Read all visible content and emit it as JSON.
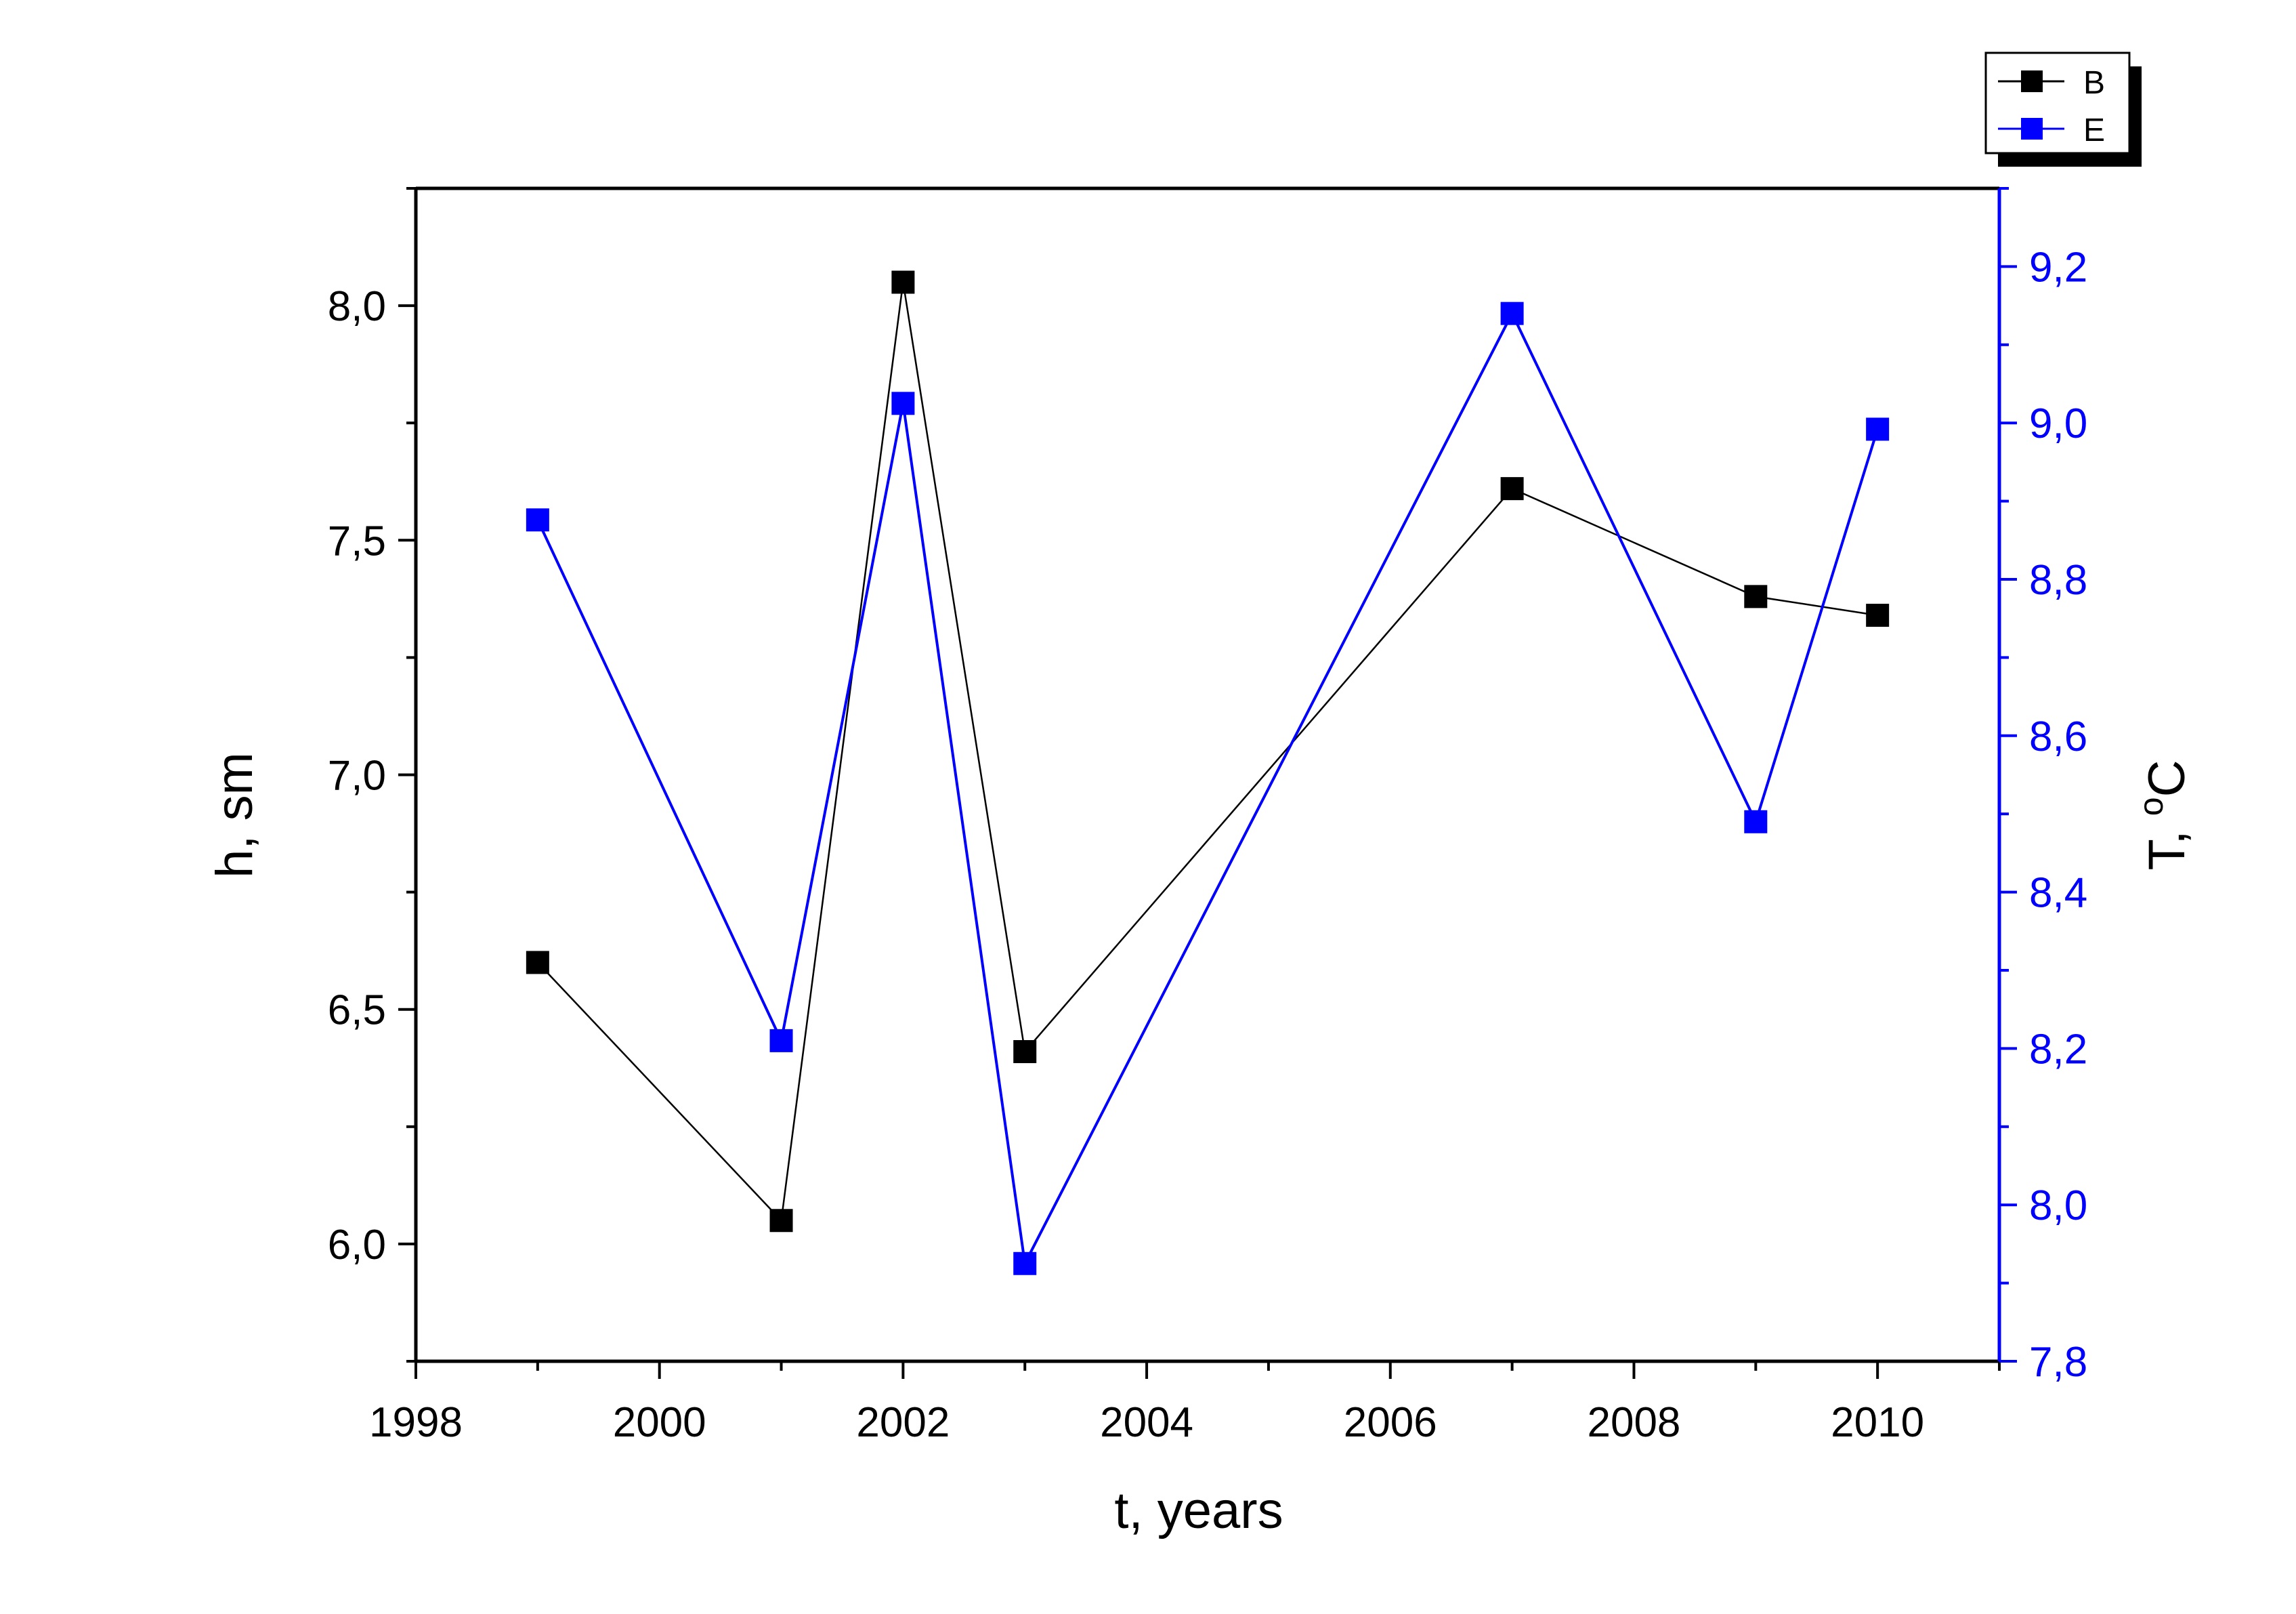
{
  "chart_data": {
    "type": "line",
    "xlabel": "t, years",
    "ylabel_left": "h, sm",
    "ylabel_right": "T, °C",
    "ylabel_right_parts": {
      "prefix": "T, ",
      "superscript": "o",
      "suffix": "C"
    },
    "xlim": [
      1998,
      2011
    ],
    "ylim_left": [
      5.75,
      8.25
    ],
    "ylim_right": [
      7.8,
      9.3
    ],
    "x_ticks": [
      1998,
      2000,
      2002,
      2004,
      2006,
      2008,
      2010
    ],
    "x_tick_labels": [
      "1998",
      "2000",
      "2002",
      "2004",
      "2006",
      "2008",
      "2010"
    ],
    "y_left_ticks": [
      6.0,
      6.5,
      7.0,
      7.5,
      8.0
    ],
    "y_left_tick_labels": [
      "6,0",
      "6,5",
      "7,0",
      "7,5",
      "8,0"
    ],
    "y_right_ticks": [
      7.8,
      8.0,
      8.2,
      8.4,
      8.6,
      8.8,
      9.0,
      9.2
    ],
    "y_right_tick_labels": [
      "7,8",
      "8,0",
      "8,2",
      "8,4",
      "8,6",
      "8,8",
      "9,0",
      "9,2"
    ],
    "grid": false,
    "legend_position": "top-right",
    "series": [
      {
        "name": "B",
        "axis": "left",
        "color": "#000000",
        "x": [
          1999,
          2001,
          2002,
          2003,
          2007,
          2009,
          2010
        ],
        "values": [
          6.6,
          6.05,
          8.05,
          6.41,
          7.61,
          7.38,
          7.34
        ]
      },
      {
        "name": "E",
        "axis": "right",
        "color": "#0000ff",
        "x": [
          1999,
          2001,
          2002,
          2003,
          2007,
          2009,
          2010
        ],
        "values": [
          8.876,
          8.21,
          9.025,
          7.925,
          9.14,
          8.49,
          8.992
        ]
      }
    ]
  }
}
